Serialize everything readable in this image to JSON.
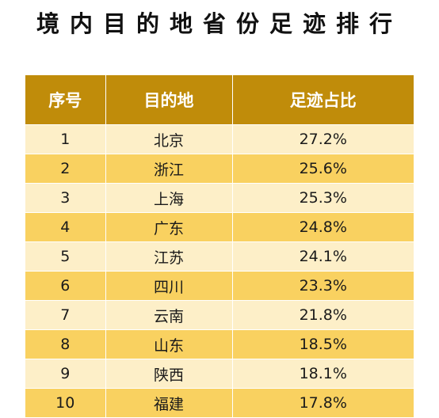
{
  "title": "境内目的地省份足迹排行",
  "colors": {
    "header_bg": "#c08c0a",
    "row_light": "#fdefc8",
    "row_dark": "#f9d160"
  },
  "chart_data": {
    "type": "table",
    "columns": [
      "序号",
      "目的地",
      "足迹占比"
    ],
    "rows": [
      [
        "1",
        "北京",
        "27.2%"
      ],
      [
        "2",
        "浙江",
        "25.6%"
      ],
      [
        "3",
        "上海",
        "25.3%"
      ],
      [
        "4",
        "广东",
        "24.8%"
      ],
      [
        "5",
        "江苏",
        "24.1%"
      ],
      [
        "6",
        "四川",
        "23.3%"
      ],
      [
        "7",
        "云南",
        "21.8%"
      ],
      [
        "8",
        "山东",
        "18.5%"
      ],
      [
        "9",
        "陕西",
        "18.1%"
      ],
      [
        "10",
        "福建",
        "17.8%"
      ]
    ]
  }
}
